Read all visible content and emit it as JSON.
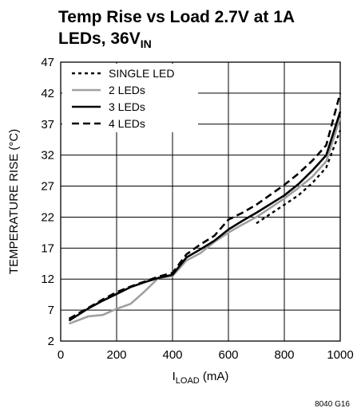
{
  "chart_data": {
    "type": "line",
    "title": {
      "line1": "Temp Rise vs Load 2.7V at 1A",
      "line2_main": "LEDs, 36V",
      "line2_sub": "IN"
    },
    "xlabel": {
      "main": "I",
      "sub": "LOAD",
      "unit": " (mA)"
    },
    "ylabel": "TEMPERATURE RISE (°C)",
    "xlim": [
      0,
      1000
    ],
    "ylim": [
      2,
      47
    ],
    "xticks": [
      0,
      200,
      400,
      600,
      800,
      1000
    ],
    "yticks": [
      2,
      7,
      12,
      17,
      22,
      27,
      32,
      37,
      42,
      47
    ],
    "grid": true,
    "legend_position": "top-left",
    "figure_id": "8040 G16",
    "series": [
      {
        "name": "SINGLE LED",
        "style": "dotted",
        "color": "#000000",
        "x": [
          700,
          750,
          800,
          850,
          900,
          950,
          1000
        ],
        "y": [
          21,
          22.5,
          24,
          25.5,
          27.5,
          30,
          36
        ]
      },
      {
        "name": "2 LEDs",
        "style": "solid-gray",
        "color": "#a0a0a0",
        "x": [
          30,
          100,
          150,
          200,
          250,
          300,
          350,
          400,
          450,
          500,
          550,
          600,
          650,
          700,
          750,
          800,
          850,
          900,
          950,
          1000
        ],
        "y": [
          4.8,
          6,
          6.2,
          7.2,
          8,
          10,
          12.2,
          12.5,
          15,
          16.2,
          18,
          19.5,
          20.8,
          22,
          23.5,
          25,
          26.7,
          28.5,
          31,
          38
        ]
      },
      {
        "name": "3 LEDs",
        "style": "solid",
        "color": "#000000",
        "x": [
          30,
          100,
          150,
          200,
          250,
          300,
          350,
          400,
          450,
          500,
          550,
          600,
          650,
          700,
          750,
          800,
          850,
          900,
          950,
          1000
        ],
        "y": [
          5.3,
          7.3,
          8.5,
          9.6,
          10.7,
          11.5,
          12.2,
          12.7,
          15.5,
          16.8,
          18.2,
          20,
          21.4,
          22.7,
          24.1,
          25.5,
          27.3,
          29.5,
          32,
          39
        ]
      },
      {
        "name": "4 LEDs",
        "style": "dashed",
        "color": "#000000",
        "x": [
          30,
          100,
          150,
          200,
          250,
          300,
          350,
          400,
          450,
          500,
          550,
          600,
          650,
          700,
          750,
          800,
          850,
          900,
          950,
          1000
        ],
        "y": [
          5.6,
          7.4,
          8.7,
          9.9,
          10.8,
          11.6,
          12.4,
          13,
          16,
          17.6,
          19,
          21.6,
          22.7,
          24,
          25.6,
          27.2,
          29,
          31.1,
          33.6,
          42
        ]
      }
    ]
  }
}
